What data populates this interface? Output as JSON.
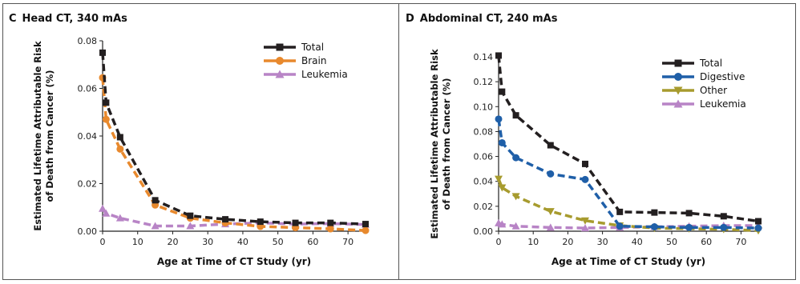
{
  "chart_data": [
    {
      "type": "line",
      "panel_letter": "C",
      "title": "Head CT, 340 mAs",
      "xlabel": "Age at Time of CT Study (yr)",
      "ylabel_lines": [
        "Estimated Lifetime Attributable Risk",
        "of Death from Cancer (%)"
      ],
      "xlim": [
        0,
        75
      ],
      "ylim": [
        0,
        0.08
      ],
      "xticks": [
        0,
        10,
        20,
        30,
        40,
        50,
        60,
        70
      ],
      "yticks": [
        0.0,
        0.02,
        0.04,
        0.06,
        0.08
      ],
      "ytick_labels": [
        "0.00",
        "0.02",
        "0.04",
        "0.06",
        "0.08"
      ],
      "legend_position": "top-right",
      "x": [
        0,
        1,
        5,
        15,
        25,
        35,
        45,
        55,
        65,
        75
      ],
      "series": [
        {
          "name": "Total",
          "color": "#231f20",
          "marker": "square",
          "values": [
            0.075,
            0.054,
            0.0395,
            0.013,
            0.0065,
            0.005,
            0.004,
            0.0035,
            0.0035,
            0.003
          ]
        },
        {
          "name": "Brain",
          "color": "#e8892d",
          "marker": "circle",
          "values": [
            0.0645,
            0.047,
            0.0345,
            0.011,
            0.0055,
            0.0035,
            0.002,
            0.0015,
            0.001,
            0.0003
          ]
        },
        {
          "name": "Leukemia",
          "color": "#b884c6",
          "marker": "triangle-up",
          "values": [
            0.0095,
            0.0075,
            0.0055,
            0.0022,
            0.0022,
            0.003,
            0.0035,
            0.003,
            0.0032,
            0.0028
          ]
        }
      ]
    },
    {
      "type": "line",
      "panel_letter": "D",
      "title": "Abdominal CT, 240 mAs",
      "xlabel": "Age at Time of CT Study (yr)",
      "ylabel_lines": [
        "Estimated Lifetime Attributable Risk",
        "of Death from Cancer (%)"
      ],
      "xlim": [
        0,
        75
      ],
      "ylim": [
        0,
        0.14
      ],
      "xticks": [
        0,
        10,
        20,
        30,
        40,
        50,
        60,
        70
      ],
      "yticks": [
        0.0,
        0.02,
        0.04,
        0.06,
        0.08,
        0.1,
        0.12,
        0.14
      ],
      "ytick_labels": [
        "0.00",
        "0.02",
        "0.04",
        "0.06",
        "0.08",
        "0.10",
        "0.12",
        "0.14"
      ],
      "legend_position": "top-right",
      "x": [
        0,
        1,
        5,
        15,
        25,
        35,
        45,
        55,
        65,
        75
      ],
      "series": [
        {
          "name": "Total",
          "color": "#231f20",
          "marker": "square",
          "values": [
            0.141,
            0.112,
            0.093,
            0.069,
            0.054,
            0.0155,
            0.015,
            0.0145,
            0.012,
            0.008
          ]
        },
        {
          "name": "Digestive",
          "color": "#1f5fa8",
          "marker": "circle",
          "values": [
            0.09,
            0.071,
            0.059,
            0.046,
            0.0415,
            0.004,
            0.0035,
            0.003,
            0.003,
            0.0025
          ]
        },
        {
          "name": "Other",
          "color": "#a79b2e",
          "marker": "triangle-down",
          "values": [
            0.042,
            0.035,
            0.028,
            0.016,
            0.0085,
            0.0045,
            0.0025,
            0.002,
            0.0015,
            0.0005
          ]
        },
        {
          "name": "Leukemia",
          "color": "#b884c6",
          "marker": "triangle-up",
          "values": [
            0.0065,
            0.0055,
            0.004,
            0.003,
            0.0025,
            0.003,
            0.0035,
            0.004,
            0.0045,
            0.0045
          ]
        }
      ]
    }
  ]
}
